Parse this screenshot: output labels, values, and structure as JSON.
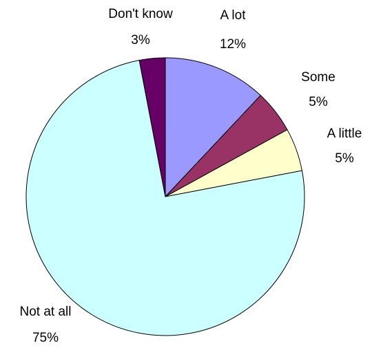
{
  "chart_data": {
    "type": "pie",
    "title": "",
    "start_angle_deg": 0,
    "direction": "clockwise",
    "legend": "none",
    "slices": [
      {
        "label": "A lot",
        "value": 12,
        "value_label": "12%",
        "color": "#9999ff"
      },
      {
        "label": "Some",
        "value": 5,
        "value_label": "5%",
        "color": "#993366"
      },
      {
        "label": "A little",
        "value": 5,
        "value_label": "5%",
        "color": "#ffffcc"
      },
      {
        "label": "Not at all",
        "value": 75,
        "value_label": "75%",
        "color": "#ccffff"
      },
      {
        "label": "Don't know",
        "value": 3,
        "value_label": "3%",
        "color": "#660066"
      }
    ]
  }
}
